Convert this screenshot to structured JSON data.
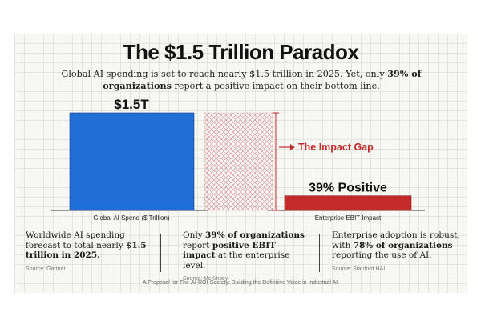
{
  "title": "The $1.5 Trillion Paradox",
  "subtitle": {
    "part1": "Global AI spending is set to reach nearly $1.5 trillion in 2025. Yet, only ",
    "bold": "39% of organizations",
    "part2": " report a positive impact on their bottom line."
  },
  "chart_data": {
    "type": "bar",
    "title": "The $1.5 Trillion Paradox",
    "categories": [
      "Global AI Spend ($ Trillion)",
      "Enterprise EBIT Impact"
    ],
    "bars": [
      {
        "category": "Global AI Spend ($ Trillion)",
        "value": 1.5,
        "unit": "trillion USD",
        "label": "$1.5T",
        "color": "#1f6fd6"
      },
      {
        "category": "Enterprise EBIT Impact",
        "value": 39,
        "unit": "%",
        "label": "39% Positive",
        "color": "#c42b2b"
      }
    ],
    "gap": {
      "label": "The Impact Gap",
      "fraction_of_spend": 1.0,
      "color": "#c42b2b"
    },
    "positive_fraction_shown": 0.15
  },
  "notes": [
    {
      "pre": "Worldwide AI spending forecast to total nearly ",
      "bold": "$1.5 trillion in 2025.",
      "post": "",
      "source": "Source: Gartner"
    },
    {
      "pre": "Only ",
      "bold": "39% of organizations",
      "mid": " report ",
      "bold2": "positive EBIT impact",
      "post": " at the enterprise level.",
      "source": "Source: McKinsey"
    },
    {
      "pre": "Enterprise adoption is robust, with ",
      "bold": "78% of organizations",
      "post": " reporting the use of AI.",
      "source": "Source: Stanford HAI"
    }
  ],
  "footer": "A Proposal for The-AI-ROI-Society: Building the Definitive Voice in Industrial AI."
}
